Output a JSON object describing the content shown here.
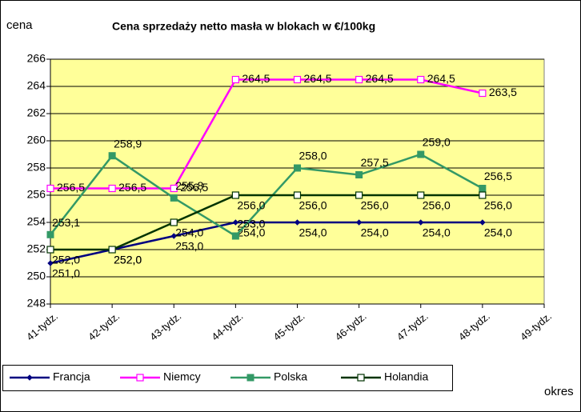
{
  "chart_data": {
    "type": "line",
    "title": "Cena sprzedaży netto masła w blokach w €/100kg",
    "y_label": "cena",
    "x_label": "okres",
    "categories": [
      "41-tydz.",
      "42-tydz.",
      "43-tydz.",
      "44-tydz.",
      "45-tydz.",
      "46-tydz.",
      "47-tydz.",
      "48-tydz.",
      "49-tydz."
    ],
    "ylim": [
      248,
      266
    ],
    "yticks": [
      248,
      250,
      252,
      254,
      256,
      258,
      260,
      262,
      264,
      266
    ],
    "grid": true,
    "series": [
      {
        "name": "Francja",
        "color": "#000080",
        "marker": "diamond",
        "values": [
          251.0,
          252.0,
          253.0,
          254.0,
          254.0,
          254.0,
          254.0,
          254.0,
          null
        ],
        "value_labels": [
          "251,0",
          "252,0",
          "253,0",
          "254,0",
          "254,0",
          "254,0",
          "254,0",
          "254,0",
          null
        ]
      },
      {
        "name": "Niemcy",
        "color": "#ff00ff",
        "marker": "open-square",
        "values": [
          256.5,
          256.5,
          256.5,
          264.5,
          264.5,
          264.5,
          264.5,
          263.5,
          null
        ],
        "value_labels": [
          "256,5",
          "256,5",
          "256,5",
          "264,5",
          "264,5",
          "264,5",
          "264,5",
          "263,5",
          null
        ]
      },
      {
        "name": "Polska",
        "color": "#339966",
        "marker": "square",
        "values": [
          253.1,
          258.9,
          255.8,
          253.0,
          258.0,
          257.5,
          259.0,
          256.5,
          null
        ],
        "value_labels": [
          "253,1",
          "258,9",
          "255,8",
          "253,0",
          "258,0",
          "257,5",
          "259,0",
          "256,5",
          null
        ]
      },
      {
        "name": "Holandia",
        "color": "#003300",
        "marker": "open-square",
        "values": [
          252.0,
          252.0,
          254.0,
          256.0,
          256.0,
          256.0,
          256.0,
          256.0,
          null
        ],
        "value_labels": [
          "252,0",
          "252,0",
          "254,0",
          "256,0",
          "256,0",
          "256,0",
          "256,0",
          "256,0",
          null
        ]
      }
    ]
  }
}
